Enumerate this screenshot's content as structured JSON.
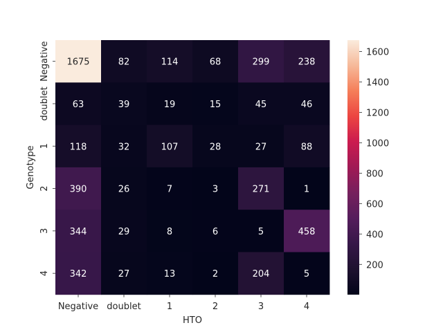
{
  "chart_data": {
    "type": "heatmap",
    "title": "",
    "xlabel": "HTO",
    "ylabel": "Genotype",
    "x_categories": [
      "Negative",
      "doublet",
      "1",
      "2",
      "3",
      "4"
    ],
    "y_categories": [
      "Negative",
      "doublet",
      "1",
      "2",
      "3",
      "4"
    ],
    "values": [
      [
        1675,
        82,
        114,
        68,
        299,
        238
      ],
      [
        63,
        39,
        19,
        15,
        45,
        46
      ],
      [
        118,
        32,
        107,
        28,
        27,
        88
      ],
      [
        390,
        26,
        7,
        3,
        271,
        1
      ],
      [
        344,
        29,
        8,
        6,
        5,
        458
      ],
      [
        342,
        27,
        13,
        2,
        204,
        5
      ]
    ],
    "colorbar": {
      "min": 1,
      "max": 1675,
      "ticks": [
        200,
        400,
        600,
        800,
        1000,
        1200,
        1400,
        1600
      ],
      "colormap": "rocket"
    }
  }
}
